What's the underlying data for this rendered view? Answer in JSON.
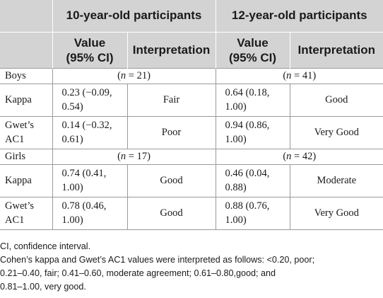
{
  "table": {
    "group_headers": [
      "10-year-old participants",
      "12-year-old participants"
    ],
    "sub_headers": {
      "value_line1": "Value",
      "value_line2": "(95% CI)",
      "interpretation": "Interpretation"
    },
    "groups": [
      {
        "label": "Boys",
        "n_10": "21",
        "n_12": "41",
        "rows": [
          {
            "label": "Kappa",
            "v10a": "0.23 (−0.09,",
            "v10b": "0.54)",
            "i10": "Fair",
            "v12a": "0.64 (0.18,",
            "v12b": "1.00)",
            "i12": "Good"
          },
          {
            "label_a": "Gwet’s",
            "label_b": "AC1",
            "v10a": "0.14 (−0.32,",
            "v10b": "0.61)",
            "i10": "Poor",
            "v12a": "0.94 (0.86,",
            "v12b": "1.00)",
            "i12": "Very Good"
          }
        ]
      },
      {
        "label": "Girls",
        "n_10": "17",
        "n_12": "42",
        "rows": [
          {
            "label": "Kappa",
            "v10a": "0.74 (0.41,",
            "v10b": "1.00)",
            "i10": "Good",
            "v12a": "0.46 (0.04,",
            "v12b": "0.88)",
            "i12": "Moderate"
          },
          {
            "label_a": "Gwet’s",
            "label_b": "AC1",
            "v10a": "0.78 (0.46,",
            "v10b": "1.00)",
            "i10": "Good",
            "v12a": "0.88 (0.76,",
            "v12b": "1.00)",
            "i12": "Very Good"
          }
        ]
      }
    ],
    "n_open": "(",
    "n_symbol": "n",
    "n_eq": " = ",
    "n_close": ")"
  },
  "footnotes": {
    "abbrev": "CI, confidence interval.",
    "line1": "Cohen’s kappa and Gwet’s AC1 values were interpreted as follows: <0.20, poor;",
    "line2": "0.21–0.40, fair; 0.41–0.60, moderate agreement; 0.61–0.80,good; and",
    "line3": "0.81–1.00, very good."
  }
}
